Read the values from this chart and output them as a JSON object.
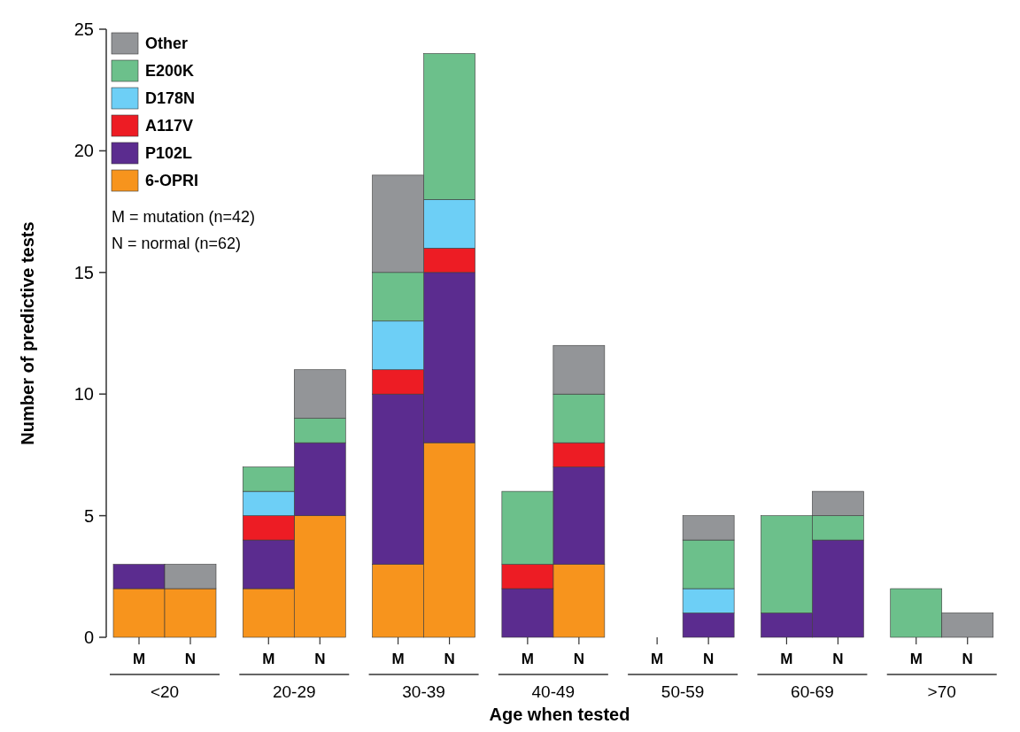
{
  "chart_data": {
    "type": "bar",
    "stacked": true,
    "xlabel": "Age when tested",
    "ylabel": "Number of predictive tests",
    "categories": [
      "M",
      "N",
      "M",
      "N",
      "M",
      "N",
      "M",
      "N",
      "M",
      "N",
      "M",
      "N",
      "M",
      "N"
    ],
    "series": [
      {
        "name": "6-OPRI",
        "color": "#f7941d",
        "values": [
          2,
          2,
          2,
          5,
          3,
          8,
          0,
          3,
          0,
          0,
          0,
          0,
          0,
          0
        ]
      },
      {
        "name": "P102L",
        "color": "#5b2c8f",
        "values": [
          1,
          0,
          2,
          3,
          7,
          7,
          2,
          4,
          0,
          1,
          1,
          4,
          0,
          0
        ]
      },
      {
        "name": "A117V",
        "color": "#ed1c24",
        "values": [
          0,
          0,
          1,
          0,
          1,
          1,
          1,
          1,
          0,
          0,
          0,
          0,
          0,
          0
        ]
      },
      {
        "name": "D178N",
        "color": "#6dcff6",
        "values": [
          0,
          0,
          1,
          0,
          2,
          2,
          0,
          0,
          0,
          1,
          0,
          0,
          0,
          0
        ]
      },
      {
        "name": "E200K",
        "color": "#6cc08b",
        "values": [
          0,
          0,
          1,
          1,
          2,
          6,
          3,
          2,
          0,
          2,
          4,
          1,
          2,
          0
        ]
      },
      {
        "name": "Other",
        "color": "#939598",
        "values": [
          0,
          1,
          0,
          2,
          4,
          0,
          0,
          2,
          0,
          1,
          0,
          1,
          0,
          1
        ]
      }
    ],
    "annotations": [
      "<20",
      "20-29",
      "30-39",
      "40-49",
      "50-59",
      "60-69",
      ">70",
      "M = mutation (n=42)",
      "N = normal (n=62)"
    ],
    "ylim": [
      0,
      25
    ],
    "yticks": [
      0,
      5,
      10,
      15,
      20,
      25
    ],
    "legend": "top left",
    "grid": false
  }
}
